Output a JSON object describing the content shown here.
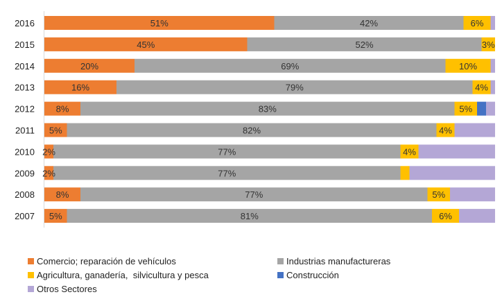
{
  "chart_data": {
    "type": "bar",
    "orientation": "horizontal",
    "stacked": "percent",
    "categories": [
      "2016",
      "2015",
      "2014",
      "2013",
      "2012",
      "2011",
      "2010",
      "2009",
      "2008",
      "2007"
    ],
    "series": [
      {
        "name": "Comercio; reparación de vehículos",
        "color": "#ED7D31",
        "values": [
          51,
          45,
          20,
          16,
          8,
          5,
          2,
          2,
          8,
          5
        ],
        "labels": [
          "51%",
          "45%",
          "20%",
          "16%",
          "8%",
          "5%",
          "2%",
          "2%",
          "8%",
          "5%"
        ]
      },
      {
        "name": "Industrias manufactureras",
        "color": "#A5A5A5",
        "values": [
          42,
          52,
          69,
          79,
          83,
          82,
          77,
          77,
          77,
          81
        ],
        "labels": [
          "42%",
          "52%",
          "69%",
          "79%",
          "83%",
          "82%",
          "77%",
          "77%",
          "77%",
          "81%"
        ]
      },
      {
        "name": "Agricultura, ganadería,  silvicultura y pesca",
        "color": "#FFC000",
        "values": [
          6,
          3,
          10,
          4,
          5,
          4,
          4,
          2,
          5,
          6
        ],
        "labels": [
          "6%",
          "3%",
          "10%",
          "4%",
          "5%",
          "4%",
          "4%",
          "",
          "5%",
          "6%"
        ]
      },
      {
        "name": "Construcción",
        "color": "#4472C4",
        "values": [
          0,
          0,
          0,
          0,
          2,
          0,
          0,
          0,
          0,
          0
        ],
        "labels": [
          "",
          "",
          "",
          "",
          "",
          "",
          "",
          "",
          "",
          ""
        ]
      },
      {
        "name": "Otros Sectores",
        "color": "#B4A7D6",
        "values": [
          1,
          0,
          1,
          1,
          2,
          9,
          17,
          19,
          10,
          8
        ],
        "labels": [
          "",
          "",
          "",
          "",
          "",
          "",
          "",
          "",
          "",
          ""
        ]
      }
    ],
    "xlim": [
      0,
      100
    ],
    "grid": false,
    "legend_position": "bottom",
    "title": "",
    "xlabel": "",
    "ylabel": ""
  }
}
